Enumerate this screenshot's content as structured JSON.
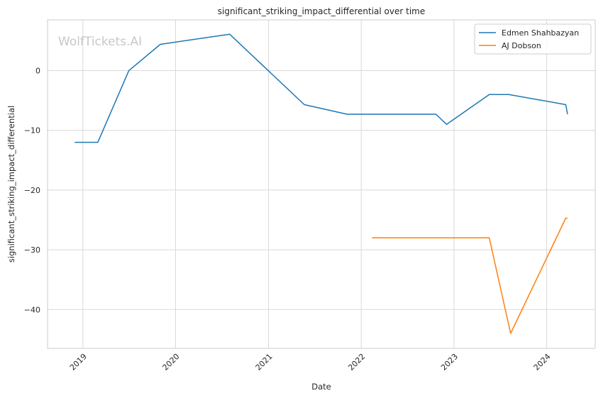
{
  "chart_data": {
    "type": "line",
    "title": "significant_striking_impact_differential over time",
    "xlabel": "Date",
    "ylabel": "significant_striking_impact_differential",
    "watermark": "WolfTickets.AI",
    "x_ticks": [
      "2019",
      "2020",
      "2021",
      "2022",
      "2023",
      "2024"
    ],
    "y_ticks": [
      0,
      -10,
      -20,
      -30,
      -40
    ],
    "ylim": [
      -46.5,
      8.5
    ],
    "xlim": [
      "2018-08-15",
      "2024-07-10"
    ],
    "grid": true,
    "legend_position": "top-right",
    "series": [
      {
        "name": "Edmen Shahbazyan",
        "color": "#1f77b4",
        "points": [
          [
            "2018-11-30",
            -12.0
          ],
          [
            "2019-03-01",
            -12.0
          ],
          [
            "2019-07-01",
            0.0
          ],
          [
            "2019-11-02",
            4.4
          ],
          [
            "2020-08-01",
            6.1
          ],
          [
            "2021-05-22",
            -5.7
          ],
          [
            "2021-11-06",
            -7.3
          ],
          [
            "2022-10-22",
            -7.3
          ],
          [
            "2022-12-03",
            -9.0
          ],
          [
            "2023-05-20",
            -4.0
          ],
          [
            "2023-08-05",
            -4.0
          ],
          [
            "2024-03-16",
            -5.7
          ],
          [
            "2024-03-23",
            -7.3
          ]
        ]
      },
      {
        "name": "AJ Dobson",
        "color": "#ff7f0e",
        "points": [
          [
            "2022-02-12",
            -28.0
          ],
          [
            "2023-05-20",
            -28.0
          ],
          [
            "2023-08-12",
            -44.0
          ],
          [
            "2024-03-16",
            -24.7
          ],
          [
            "2024-03-23",
            -24.7
          ]
        ]
      }
    ]
  }
}
